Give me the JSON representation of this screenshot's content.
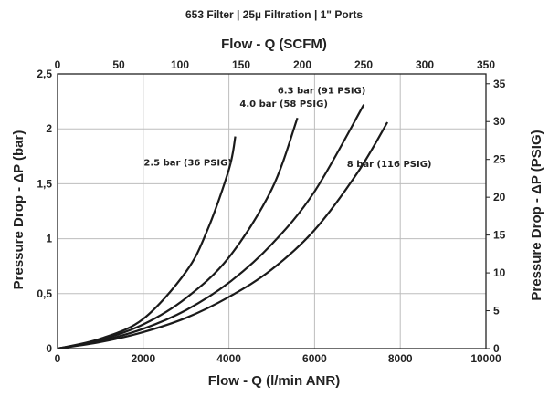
{
  "chart_data": {
    "type": "line",
    "title": "653 Filter | 25µ Filtration | 1\" Ports",
    "xlabel": "Flow - Q (l/min ANR)",
    "ylabel": "Pressure Drop - ΔP (bar)",
    "x2label": "Flow - Q (SCFM)",
    "y2label": "Pressure Drop - ΔP (PSIG)",
    "xlim": [
      0,
      10000
    ],
    "ylim": [
      0,
      2.5
    ],
    "x2lim": [
      0,
      350
    ],
    "y2lim": [
      0,
      36.3
    ],
    "x_ticks": [
      "0",
      "2000",
      "4000",
      "6000",
      "8000",
      "10000"
    ],
    "y_ticks": [
      "0",
      "0,5",
      "1",
      "1,5",
      "2",
      "2,5"
    ],
    "x2_ticks": [
      "0",
      "50",
      "100",
      "150",
      "200",
      "250",
      "300",
      "350"
    ],
    "y2_ticks": [
      "0",
      "5",
      "10",
      "15",
      "20",
      "25",
      "30",
      "35"
    ],
    "grid": true,
    "series": [
      {
        "name": "2.5 bar (36 PSIG)",
        "x": [
          0,
          1000,
          2000,
          3000,
          3500,
          4000,
          4150
        ],
        "y": [
          0,
          0.09,
          0.27,
          0.7,
          1.08,
          1.63,
          1.93
        ]
      },
      {
        "name": "4.0 bar (58 PSIG)",
        "x": [
          0,
          1000,
          2000,
          3000,
          4000,
          5000,
          5600
        ],
        "y": [
          0,
          0.08,
          0.22,
          0.46,
          0.83,
          1.45,
          2.1
        ]
      },
      {
        "name": "6.3 bar (91 PSIG)",
        "x": [
          0,
          1000,
          2000,
          3000,
          4000,
          5000,
          6000,
          7150
        ],
        "y": [
          0,
          0.07,
          0.18,
          0.35,
          0.6,
          0.95,
          1.43,
          2.22
        ]
      },
      {
        "name": "8 bar (116 PSIG)",
        "x": [
          0,
          1000,
          2000,
          3000,
          4000,
          5000,
          6000,
          7000,
          7700
        ],
        "y": [
          0,
          0.06,
          0.15,
          0.28,
          0.47,
          0.72,
          1.08,
          1.6,
          2.06
        ]
      }
    ]
  }
}
